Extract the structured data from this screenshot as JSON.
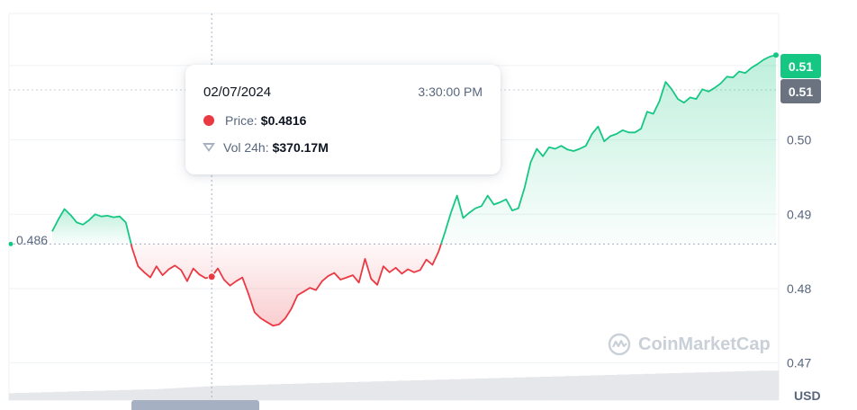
{
  "chart_data": {
    "type": "line",
    "currency": "USD",
    "yticks": [
      0.51,
      0.5,
      0.49,
      0.48,
      0.47
    ],
    "ylim": [
      0.465,
      0.517
    ],
    "reference_price": 0.486,
    "reference_label": "0.486",
    "current_price_label": "0.51",
    "previous_price_label": "0.51",
    "colors": {
      "up": "#16c784",
      "down": "#ea3943",
      "reference_badge": "#6b7280",
      "volume": "#e5e7eb"
    },
    "price_series": [
      0.4877,
      0.4893,
      0.4907,
      0.4899,
      0.4889,
      0.4886,
      0.4892,
      0.49,
      0.4897,
      0.4898,
      0.4896,
      0.4897,
      0.4889,
      0.4855,
      0.483,
      0.4822,
      0.4815,
      0.483,
      0.4818,
      0.4826,
      0.4831,
      0.4825,
      0.481,
      0.4827,
      0.4819,
      0.4814,
      0.4816,
      0.4827,
      0.4812,
      0.4804,
      0.481,
      0.4815,
      0.4793,
      0.4768,
      0.476,
      0.4755,
      0.475,
      0.4752,
      0.476,
      0.4773,
      0.4791,
      0.4796,
      0.4801,
      0.4798,
      0.481,
      0.4817,
      0.4821,
      0.4812,
      0.4815,
      0.4818,
      0.4808,
      0.484,
      0.4813,
      0.4805,
      0.483,
      0.4822,
      0.4828,
      0.482,
      0.4826,
      0.4822,
      0.4825,
      0.4839,
      0.4832,
      0.485,
      0.4875,
      0.4902,
      0.4925,
      0.4895,
      0.4902,
      0.4908,
      0.4911,
      0.4925,
      0.4913,
      0.4916,
      0.492,
      0.4905,
      0.4908,
      0.4935,
      0.497,
      0.4988,
      0.4978,
      0.499,
      0.4988,
      0.4992,
      0.4987,
      0.4985,
      0.4988,
      0.4992,
      0.5008,
      0.5018,
      0.4998,
      0.5005,
      0.5008,
      0.5013,
      0.501,
      0.501,
      0.5015,
      0.5038,
      0.5035,
      0.5052,
      0.5078,
      0.5068,
      0.5055,
      0.505,
      0.5057,
      0.5055,
      0.5068,
      0.5065,
      0.507,
      0.5076,
      0.5085,
      0.5084,
      0.5092,
      0.509,
      0.5097,
      0.5102,
      0.5108,
      0.5112,
      0.5114
    ],
    "volume_series": [
      0.19,
      0.2,
      0.2,
      0.21,
      0.21,
      0.22,
      0.22,
      0.23,
      0.23,
      0.24,
      0.24,
      0.25,
      0.25,
      0.26,
      0.26,
      0.27,
      0.27,
      0.28,
      0.28,
      0.29,
      0.29,
      0.3,
      0.3,
      0.31,
      0.32,
      0.33,
      0.34,
      0.35,
      0.36,
      0.37,
      0.38,
      0.39,
      0.4,
      0.4,
      0.41,
      0.41,
      0.42,
      0.42,
      0.43,
      0.43,
      0.44,
      0.44,
      0.45,
      0.45,
      0.46,
      0.46,
      0.47,
      0.47,
      0.48,
      0.48,
      0.49,
      0.49,
      0.5,
      0.5,
      0.51,
      0.51,
      0.52,
      0.52,
      0.53,
      0.53,
      0.54,
      0.54,
      0.55,
      0.55,
      0.56,
      0.56,
      0.57,
      0.57,
      0.58,
      0.58,
      0.59,
      0.59,
      0.6,
      0.6,
      0.61,
      0.61,
      0.62,
      0.62,
      0.63,
      0.63,
      0.64,
      0.64,
      0.65,
      0.65,
      0.66,
      0.66,
      0.67,
      0.67,
      0.68,
      0.68,
      0.69,
      0.69,
      0.7,
      0.7,
      0.71,
      0.71,
      0.72,
      0.72,
      0.73,
      0.73,
      0.74,
      0.74,
      0.75,
      0.75,
      0.76,
      0.76,
      0.77,
      0.77,
      0.78,
      0.78,
      0.79,
      0.79,
      0.8,
      0.8,
      0.81,
      0.81,
      0.82,
      0.82,
      0.82
    ],
    "hover_index": 26
  },
  "tooltip": {
    "date": "02/07/2024",
    "time": "3:30:00 PM",
    "price_label": "Price:",
    "price_value": "$0.4816",
    "vol_label": "Vol 24h:",
    "vol_value": "$370.17M"
  },
  "watermark": "CoinMarketCap",
  "currency_label": "USD"
}
